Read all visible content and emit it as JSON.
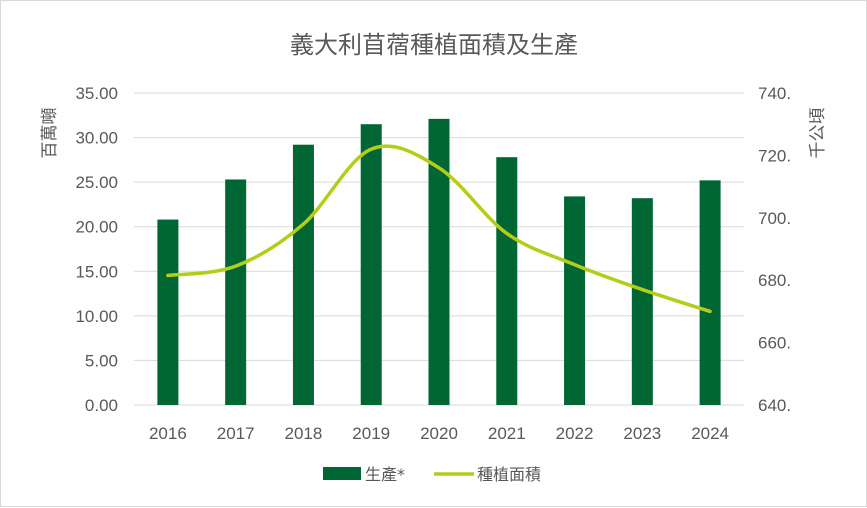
{
  "chart_data": {
    "type": "bar",
    "title": "義大利苜蓿種植面積及生產",
    "categories": [
      "2016",
      "2017",
      "2018",
      "2019",
      "2020",
      "2021",
      "2022",
      "2023",
      "2024"
    ],
    "series": [
      {
        "name": "生產*",
        "type": "bar",
        "axis": "left",
        "color": "#006633",
        "values": [
          20.8,
          25.3,
          29.2,
          31.5,
          32.1,
          27.8,
          23.4,
          23.2,
          25.2
        ]
      },
      {
        "name": "種植面積",
        "type": "line",
        "axis": "right",
        "color": "#b5cc18",
        "values": [
          681.5,
          684.5,
          698,
          722,
          716,
          695,
          685,
          677,
          670
        ]
      }
    ],
    "y_left": {
      "label": "百萬噸",
      "range": [
        0,
        35
      ],
      "ticks": [
        "0.00",
        "5.00",
        "10.00",
        "15.00",
        "20.00",
        "25.00",
        "30.00",
        "35.00"
      ]
    },
    "y_right": {
      "label": "千公頃",
      "range": [
        640,
        740
      ],
      "ticks": [
        "640.",
        "660.",
        "680.",
        "700.",
        "720.",
        "740."
      ]
    },
    "grid": true,
    "legend_position": "bottom"
  }
}
